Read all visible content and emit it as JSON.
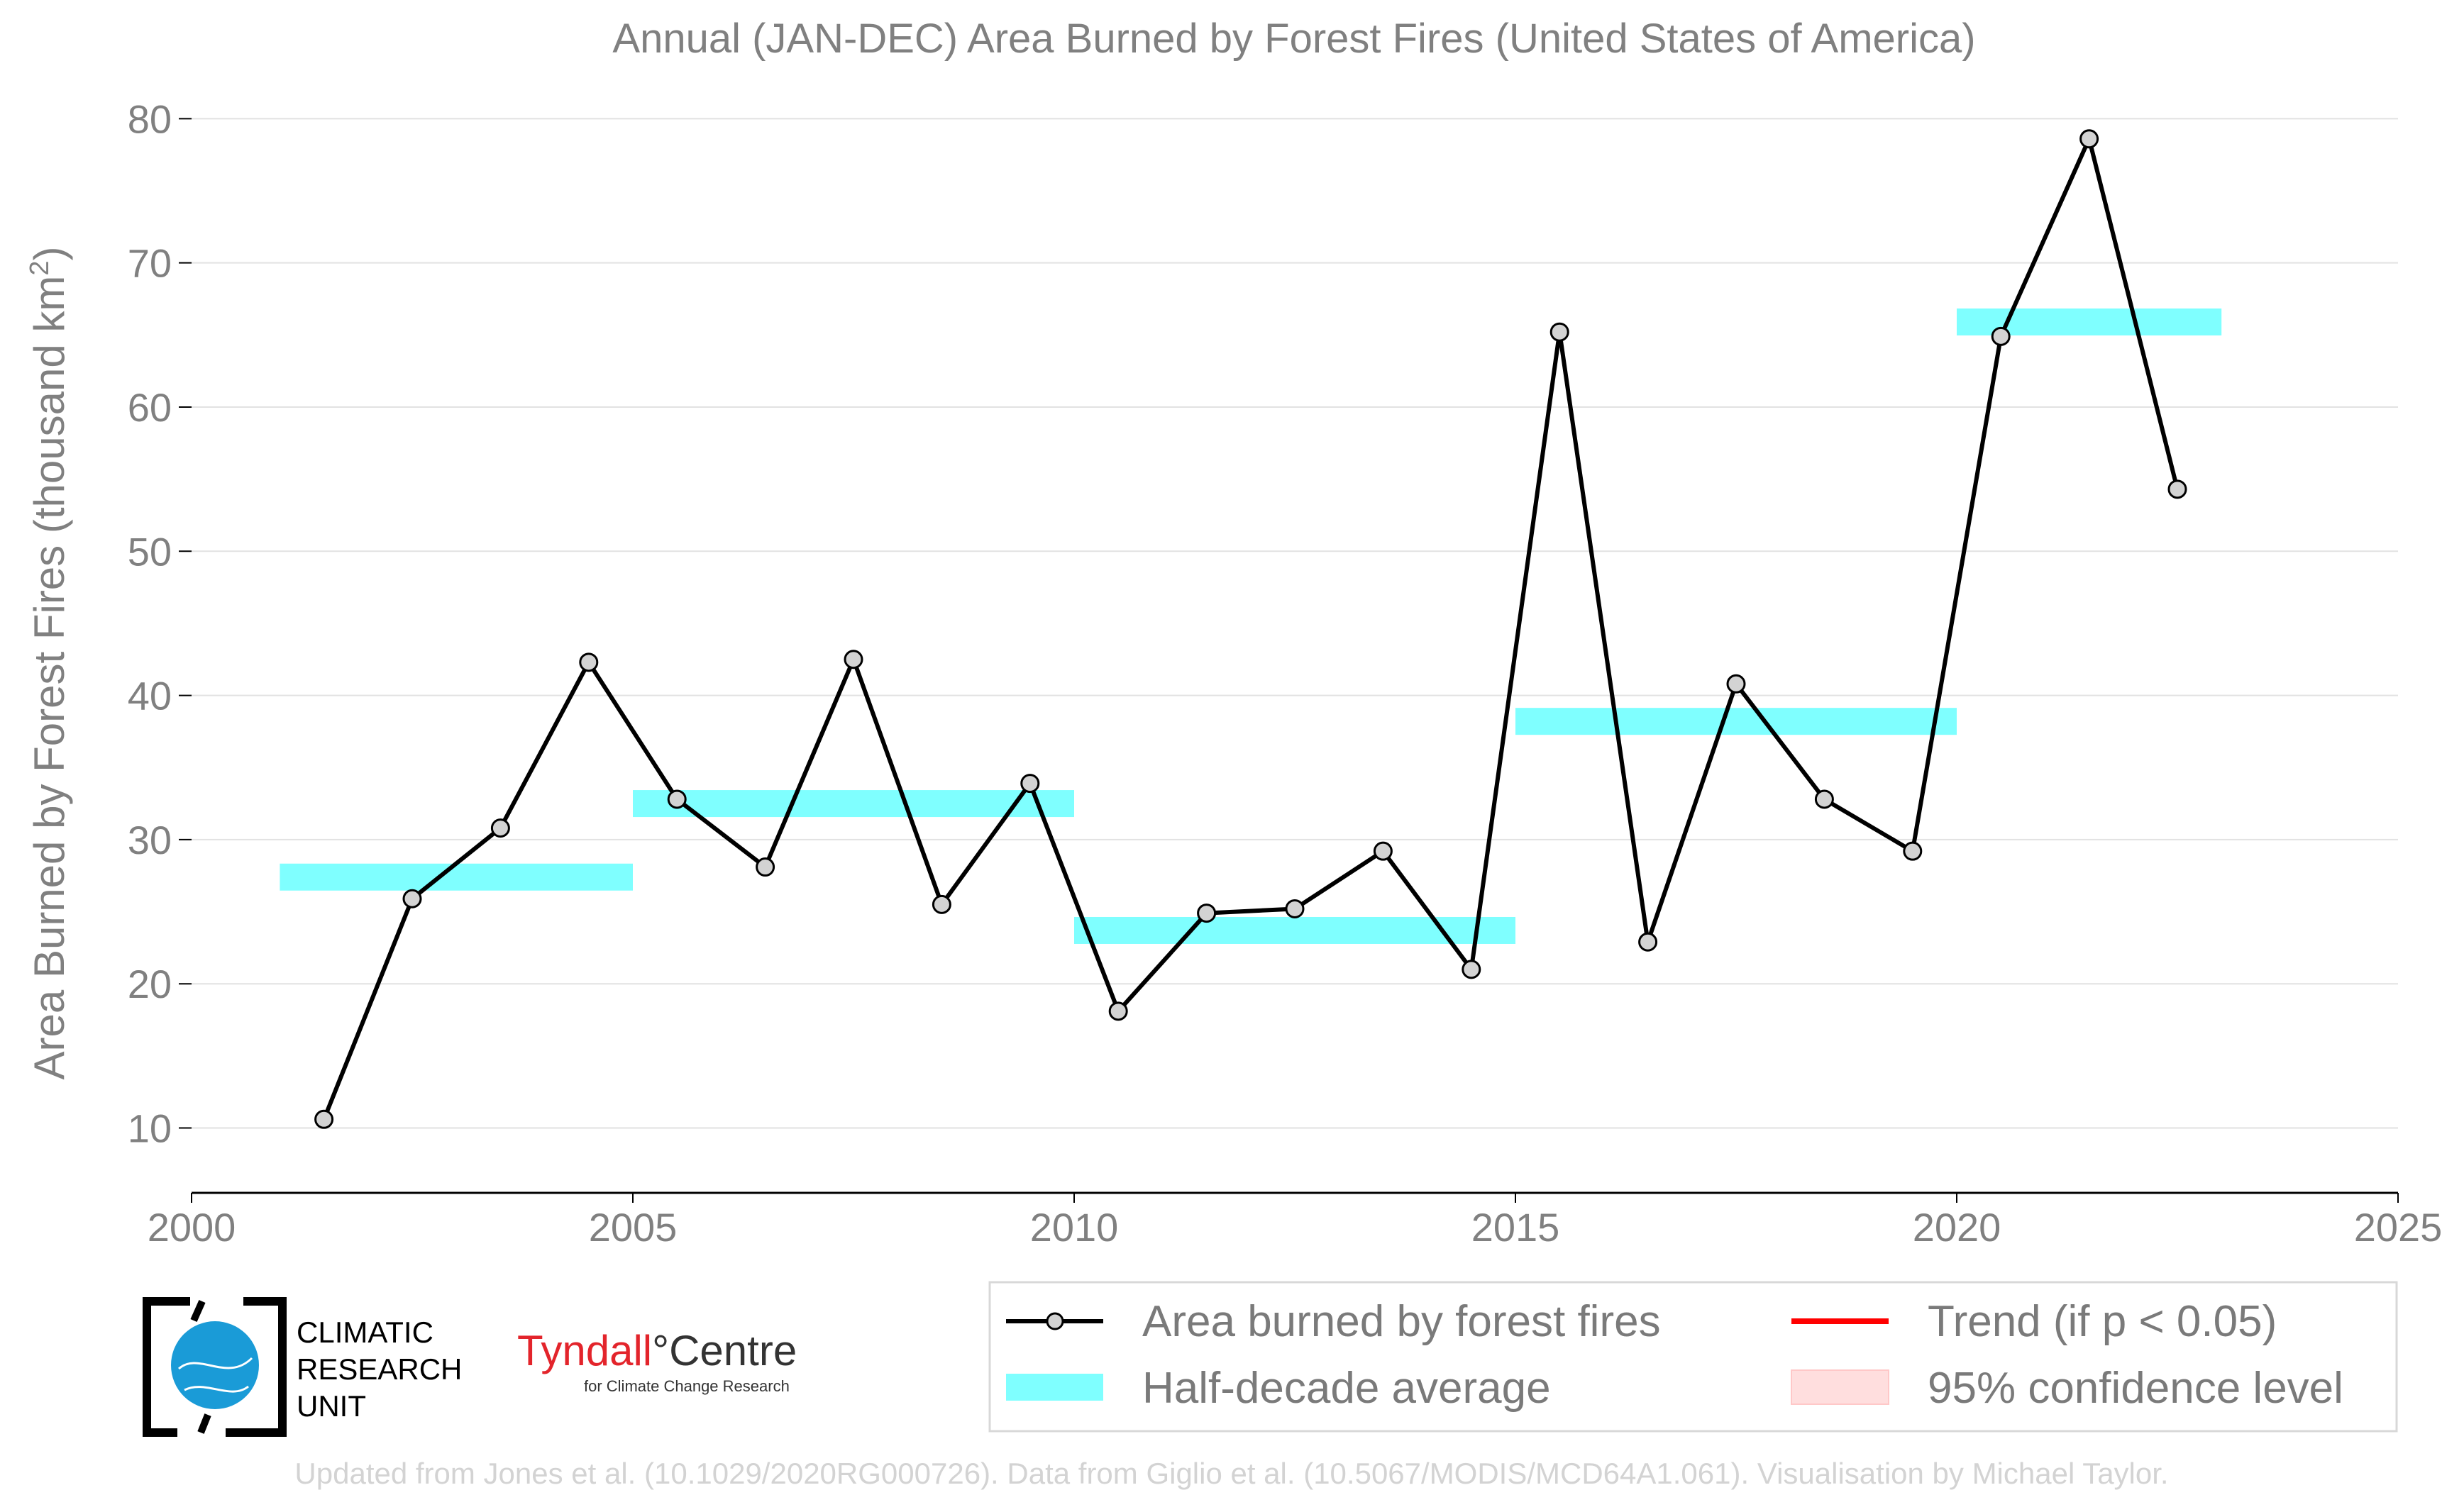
{
  "chart_data": {
    "type": "line",
    "title": "Annual (JAN-DEC) Area Burned by Forest Fires (United States of America)",
    "ylabel_main": "Area Burned by Forest Fires (thousand km",
    "ylabel_sup": "2",
    "ylabel_end": ")",
    "xlabel": "",
    "xlim": [
      2000,
      2025
    ],
    "ylim": [
      5.5,
      81
    ],
    "x_ticks": [
      2000,
      2005,
      2010,
      2015,
      2020,
      2025
    ],
    "y_ticks": [
      10,
      20,
      30,
      40,
      50,
      60,
      70,
      80
    ],
    "grid": "horizontal",
    "legend_position": "bottom-right",
    "series": [
      {
        "name": "Area burned by forest fires",
        "color": "#000000",
        "marker_fill": "#d3d3d3",
        "x": [
          2001.5,
          2002.5,
          2003.5,
          2004.5,
          2005.5,
          2006.5,
          2007.5,
          2008.5,
          2009.5,
          2010.5,
          2011.5,
          2012.5,
          2013.5,
          2014.5,
          2015.5,
          2016.5,
          2017.5,
          2018.5,
          2019.5,
          2020.5,
          2021.5,
          2022.5
        ],
        "y": [
          10.6,
          25.9,
          30.8,
          42.3,
          32.8,
          28.1,
          42.5,
          25.5,
          33.9,
          18.1,
          24.9,
          25.2,
          29.2,
          21.0,
          65.2,
          22.9,
          40.8,
          32.8,
          29.2,
          64.9,
          78.6,
          54.3
        ]
      },
      {
        "name": "Half-decade average",
        "color": "#7fffff",
        "segments": [
          {
            "x_start": 2001,
            "x_end": 2005,
            "y": 27.4
          },
          {
            "x_start": 2005,
            "x_end": 2010,
            "y": 32.5
          },
          {
            "x_start": 2010,
            "x_end": 2015,
            "y": 23.7
          },
          {
            "x_start": 2015,
            "x_end": 2020,
            "y": 38.2
          },
          {
            "x_start": 2020,
            "x_end": 2023,
            "y": 65.9
          }
        ]
      }
    ],
    "legend": [
      {
        "label": "Area burned by forest fires",
        "symbol": "line-marker",
        "color": "#000000"
      },
      {
        "label": "Trend (if p < 0.05)",
        "symbol": "line",
        "color": "#ff0000"
      },
      {
        "label": "Half-decade average",
        "symbol": "band",
        "color": "#7fffff"
      },
      {
        "label": "95% confidence level",
        "symbol": "patch",
        "color": "#ffdede"
      }
    ]
  },
  "logos": {
    "cru_lines": [
      "CLIMATIC",
      "RESEARCH",
      "UNIT"
    ],
    "tyndall_part1": "Tyndall",
    "tyndall_part2": "°Centre",
    "tyndall_sub": "for Climate Change Research"
  },
  "footer": "Updated from Jones et al. (10.1029/2020RG000726). Data from Giglio et al. (10.5067/MODIS/MCD64A1.061). Visualisation by Michael Taylor."
}
